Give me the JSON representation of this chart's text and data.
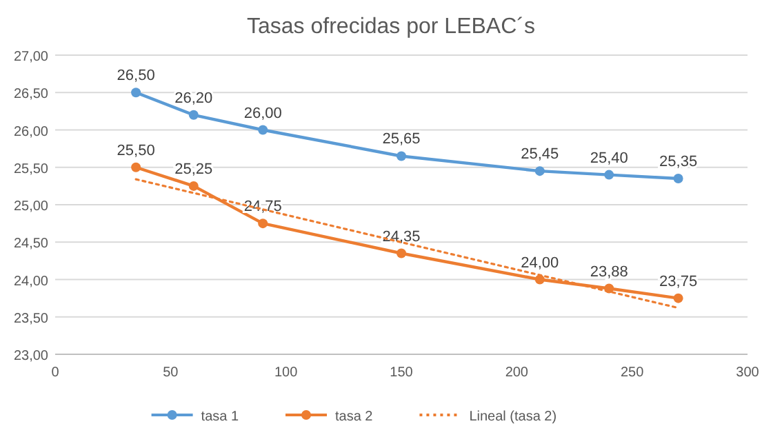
{
  "chart_data": {
    "type": "line",
    "title": "Tasas ofrecidas por LEBAC´s",
    "x": [
      35,
      60,
      90,
      150,
      210,
      240,
      270
    ],
    "series": [
      {
        "name": "tasa 1",
        "color": "#5b9bd5",
        "values": [
          26.5,
          26.2,
          26.0,
          25.65,
          25.45,
          25.4,
          25.35
        ],
        "value_labels": [
          "26,50",
          "26,20",
          "26,00",
          "25,65",
          "25,45",
          "25,40",
          "25,35"
        ],
        "marker": "circle"
      },
      {
        "name": "tasa 2",
        "color": "#ed7d31",
        "values": [
          25.5,
          25.25,
          24.75,
          24.35,
          24.0,
          23.88,
          23.75
        ],
        "value_labels": [
          "25,50",
          "25,25",
          "24,75",
          "24,35",
          "24,00",
          "23,88",
          "23,75"
        ],
        "marker": "circle"
      },
      {
        "name": "Lineal (tasa 2)",
        "color": "#ed7d31",
        "x": [
          35,
          270
        ],
        "values": [
          25.34,
          23.62
        ],
        "marker": "none",
        "line_style": "dotted"
      }
    ],
    "xlim": [
      0,
      300
    ],
    "xticks": [
      0,
      50,
      100,
      150,
      200,
      250,
      300
    ],
    "ylim": [
      23,
      27
    ],
    "yticks": [
      {
        "value": 23,
        "label": "23,00"
      },
      {
        "value": 23.5,
        "label": "23,50"
      },
      {
        "value": 24,
        "label": "24,00"
      },
      {
        "value": 24.5,
        "label": "24,50"
      },
      {
        "value": 25,
        "label": "25,00"
      },
      {
        "value": 25.5,
        "label": "25,50"
      },
      {
        "value": 26,
        "label": "26,00"
      },
      {
        "value": 26.5,
        "label": "26,50"
      },
      {
        "value": 27,
        "label": "27,00"
      }
    ],
    "grid": "y",
    "legend": "bottom"
  }
}
